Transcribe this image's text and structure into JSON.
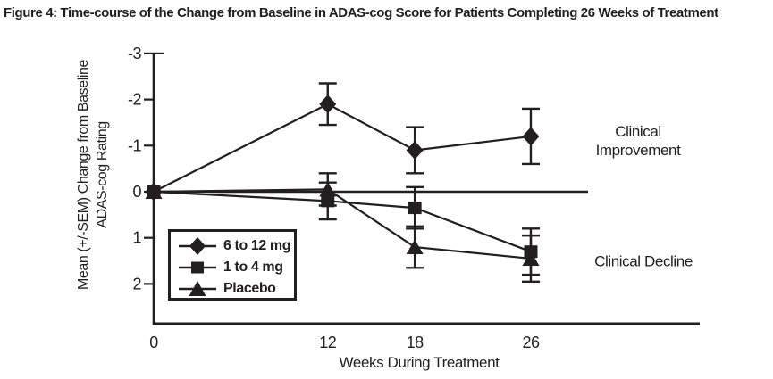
{
  "figure": {
    "title": "Figure 4: Time-course of the Change from Baseline in ADAS-cog Score for Patients Completing 26 Weeks of Treatment"
  },
  "chart_data": {
    "type": "line",
    "title": "Figure 4: Time-course of the Change from Baseline in ADAS-cog Score for Patients Completing 26 Weeks of Treatment",
    "xlabel": "Weeks During Treatment",
    "ylabel": "Mean (+/-SEM) Change from Baseline ADAS-cog Rating",
    "ylabel_lines": [
      "Mean (+/-SEM) Change from Baseline",
      "ADAS-cog Rating"
    ],
    "x": [
      0,
      12,
      18,
      26
    ],
    "xticks": [
      "0",
      "12",
      "18",
      "26"
    ],
    "yticks": [
      "-3",
      "-2",
      "-1",
      "0",
      "1",
      "2"
    ],
    "y_axis_inverted": true,
    "ylim": [
      -3,
      2.85
    ],
    "grid": false,
    "error_bars": "SEM",
    "ink_color": "#231f20",
    "legend_position": "lower-left-inside",
    "series": [
      {
        "name": "6 to 12 mg",
        "marker": "diamond",
        "values": [
          0,
          -1.9,
          -0.9,
          -1.2
        ],
        "sem": [
          0,
          0.45,
          0.5,
          0.6
        ]
      },
      {
        "name": "1 to 4 mg",
        "marker": "square",
        "values": [
          0,
          0.2,
          0.35,
          1.3
        ],
        "sem": [
          0,
          0.4,
          0.45,
          0.5
        ]
      },
      {
        "name": "Placebo",
        "marker": "triangle",
        "values": [
          0,
          -0.05,
          1.2,
          1.45
        ],
        "sem": [
          0,
          0.35,
          0.45,
          0.5
        ]
      }
    ],
    "annotations": [
      {
        "text": "Clinical Improvement",
        "side": "upper-right"
      },
      {
        "text": "Clinical Decline",
        "side": "lower-right"
      }
    ]
  }
}
